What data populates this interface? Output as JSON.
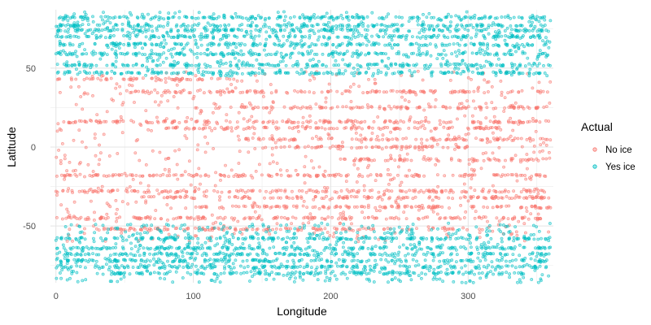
{
  "chart_data": {
    "type": "scatter",
    "xlabel": "Longitude",
    "ylabel": "Latitude",
    "xlim": [
      -4,
      362
    ],
    "ylim": [
      -86,
      87
    ],
    "x_ticks": [
      0,
      100,
      200,
      300
    ],
    "y_ticks": [
      -50,
      0,
      50
    ],
    "grid": true,
    "legend": {
      "title": "Actual",
      "position": "right"
    },
    "series": [
      {
        "name": "No ice",
        "color": "#F8766D",
        "bands": [
          {
            "y": 43,
            "x": [
              0,
              130
            ]
          },
          {
            "y": 35,
            "x": [
              50,
              360
            ]
          },
          {
            "y": 25,
            "x": [
              100,
              360
            ]
          },
          {
            "y": 16,
            "x": [
              5,
              360
            ]
          },
          {
            "y": 12,
            "x": [
              80,
              330
            ]
          },
          {
            "y": 5,
            "x": [
              130,
              360
            ]
          },
          {
            "y": 0,
            "x": [
              150,
              300
            ]
          },
          {
            "y": -8,
            "x": [
              200,
              360
            ]
          },
          {
            "y": -18,
            "x": [
              0,
              360
            ]
          },
          {
            "y": -28,
            "x": [
              0,
              360
            ]
          },
          {
            "y": -32,
            "x": [
              60,
              360
            ]
          },
          {
            "y": -38,
            "x": [
              100,
              360
            ]
          },
          {
            "y": -45,
            "x": [
              0,
              360
            ]
          },
          {
            "y": -52,
            "x": [
              20,
              300
            ]
          }
        ],
        "scatter_range": {
          "y": [
            -60,
            48
          ],
          "x": [
            0,
            360
          ]
        }
      },
      {
        "name": "Yes ice",
        "color": "#00BFC4",
        "bands": [
          {
            "y": 82,
            "x": [
              0,
              360
            ]
          },
          {
            "y": 77,
            "x": [
              0,
              360
            ]
          },
          {
            "y": 74,
            "x": [
              0,
              360
            ]
          },
          {
            "y": 70,
            "x": [
              0,
              360
            ]
          },
          {
            "y": 65,
            "x": [
              0,
              360
            ]
          },
          {
            "y": 59,
            "x": [
              0,
              360
            ]
          },
          {
            "y": 52,
            "x": [
              0,
              360
            ]
          },
          {
            "y": 47,
            "x": [
              0,
              360
            ]
          },
          {
            "y": -58,
            "x": [
              0,
              360
            ]
          },
          {
            "y": -64,
            "x": [
              0,
              360
            ]
          },
          {
            "y": -68,
            "x": [
              0,
              360
            ]
          },
          {
            "y": -72,
            "x": [
              0,
              360
            ]
          },
          {
            "y": -76,
            "x": [
              0,
              360
            ]
          },
          {
            "y": -80,
            "x": [
              40,
              340
            ]
          }
        ],
        "scatter_range": {
          "y": [
            45,
            86
          ],
          "x": [
            0,
            360
          ]
        },
        "scatter_range_south": {
          "y": [
            -86,
            -48
          ],
          "x": [
            0,
            360
          ]
        }
      }
    ]
  }
}
